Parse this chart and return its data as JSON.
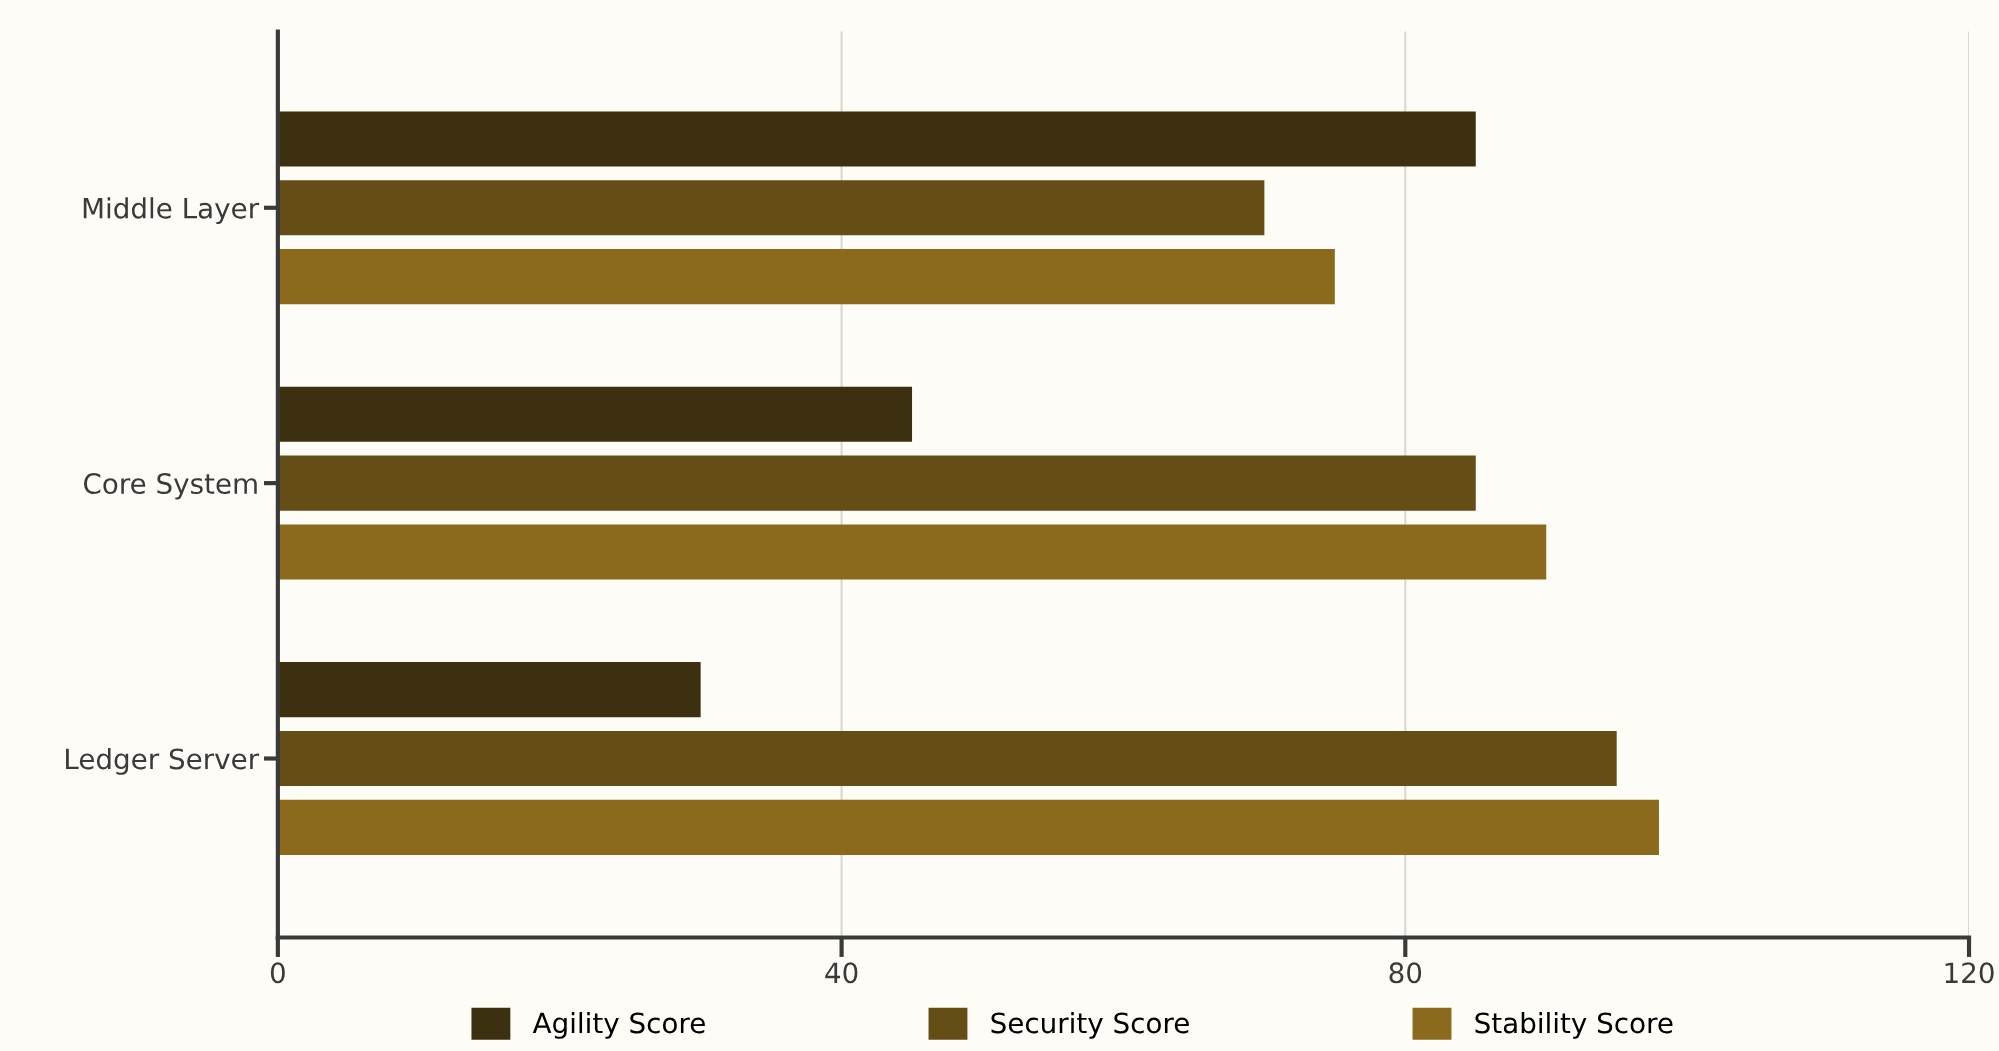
{
  "chart_data": {
    "type": "bar",
    "orientation": "horizontal",
    "categories": [
      "Middle Layer",
      "Core System",
      "Ledger Server"
    ],
    "series": [
      {
        "name": "Agility Score",
        "color": "#3d3010",
        "values": [
          85,
          45,
          30
        ]
      },
      {
        "name": "Security Score",
        "color": "#654d16",
        "values": [
          70,
          85,
          95
        ]
      },
      {
        "name": "Stability Score",
        "color": "#8b6a1e",
        "values": [
          75,
          90,
          98
        ]
      }
    ],
    "xlim": [
      0,
      120
    ],
    "xticks": [
      0,
      40,
      80,
      120
    ],
    "grid": "x",
    "legend": "bottom"
  }
}
